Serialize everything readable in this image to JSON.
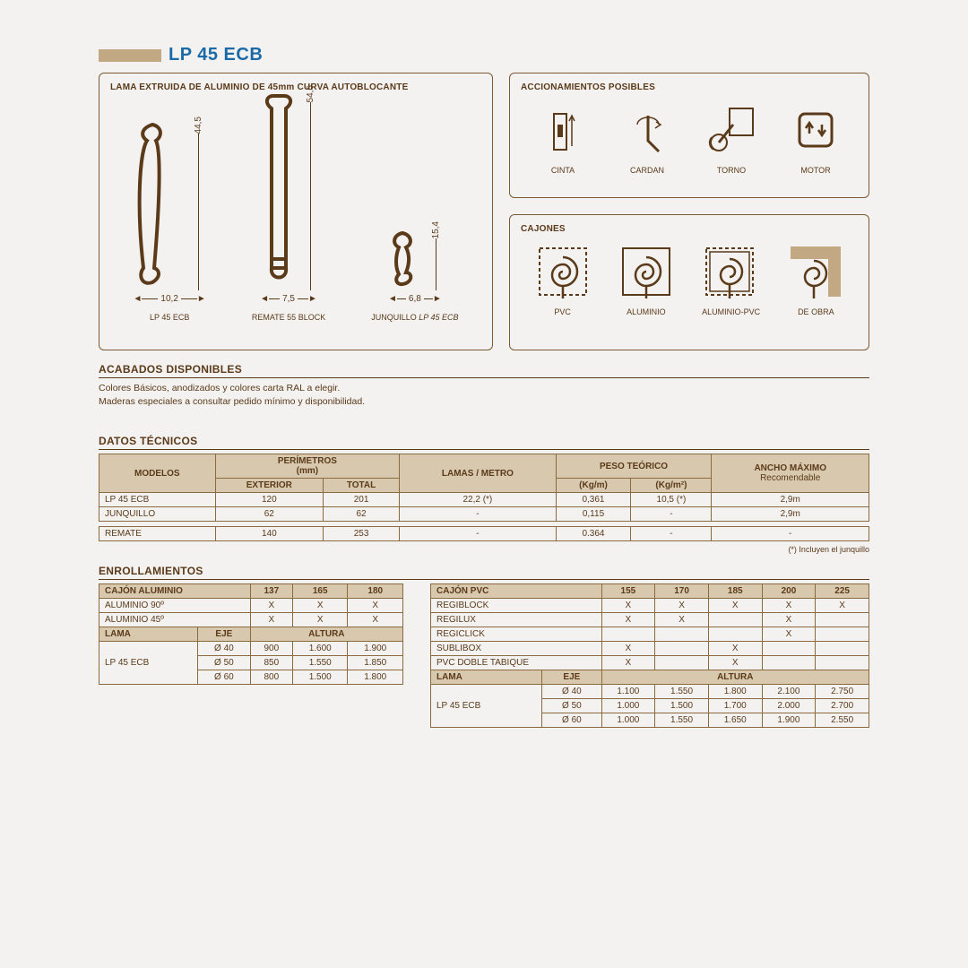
{
  "colors": {
    "accent": "#c2a883",
    "title": "#1a6aa8",
    "line": "#5b3a1a",
    "th_bg": "#d8c9ae",
    "border": "#8a6a3f",
    "bg": "#f3f2f0"
  },
  "title": "LP 45 ECB",
  "panels": {
    "profiles": {
      "title": "LAMA EXTRUIDA DE ALUMINIO DE 45mm CURVA AUTOBLOCANTE",
      "items": [
        {
          "name": "LP 45 ECB",
          "h": "44,5",
          "w": "10,2"
        },
        {
          "name": "REMATE 55 BLOCK",
          "h": "54,6",
          "w": "7,5"
        },
        {
          "name": "JUNQUILLO LP 45 ECB",
          "h": "15,4",
          "w": "6,8",
          "italic_suffix": true
        }
      ]
    },
    "acc": {
      "title": "ACCIONAMIENTOS POSIBLES",
      "items": [
        "CINTA",
        "CARDAN",
        "TORNO",
        "MOTOR"
      ]
    },
    "caj": {
      "title": "CAJONES",
      "items": [
        "PVC",
        "ALUMINIO",
        "ALUMINIO-PVC",
        "DE OBRA"
      ]
    }
  },
  "acabados": {
    "title": "ACABADOS DISPONIBLES",
    "lines": [
      "Colores Básicos, anodizados y colores carta RAL a elegir.",
      "Maderas especiales a consultar pedido mínimo y disponibilidad."
    ]
  },
  "datos": {
    "title": "DATOS TÉCNICOS",
    "head": {
      "modelos": "MODELOS",
      "perimetros": "PERÍMETROS",
      "perimetros_unit": "(mm)",
      "exterior": "EXTERIOR",
      "total": "TOTAL",
      "lamas": "LAMAS / METRO",
      "peso": "PESO TEÓRICO",
      "peso_u1": "(Kg/m)",
      "peso_u2": "(Kg/m²)",
      "ancho": "ANCHO MÁXIMO",
      "ancho_sub": "Recomendable"
    },
    "rows": [
      {
        "m": "LP 45 ECB",
        "ext": "120",
        "tot": "201",
        "lam": "22,2 (*)",
        "p1": "0,361",
        "p2": "10,5 (*)",
        "an": "2,9m"
      },
      {
        "m": "JUNQUILLO",
        "ext": "62",
        "tot": "62",
        "lam": "-",
        "p1": "0,115",
        "p2": "-",
        "an": "2,9m"
      }
    ],
    "row_remate": {
      "m": "REMATE",
      "ext": "140",
      "tot": "253",
      "lam": "-",
      "p1": "0.364",
      "p2": "-",
      "an": "-"
    },
    "footnote": "(*) Incluyen el junquillo"
  },
  "enroll": {
    "title": "ENROLLAMIENTOS",
    "left": {
      "h_cajon": "CAJÓN ALUMINIO",
      "cols": [
        "137",
        "165",
        "180"
      ],
      "rows_top": [
        {
          "n": "ALUMINIO 90º",
          "v": [
            "X",
            "X",
            "X"
          ]
        },
        {
          "n": "ALUMINIO 45º",
          "v": [
            "X",
            "X",
            "X"
          ]
        }
      ],
      "h_lama": "LAMA",
      "h_eje": "EJE",
      "h_altura": "ALTURA",
      "lama": "LP 45 ECB",
      "ejes": [
        {
          "e": "Ø 40",
          "v": [
            "900",
            "1.600",
            "1.900"
          ]
        },
        {
          "e": "Ø 50",
          "v": [
            "850",
            "1.550",
            "1.850"
          ]
        },
        {
          "e": "Ø 60",
          "v": [
            "800",
            "1.500",
            "1.800"
          ]
        }
      ]
    },
    "right": {
      "h_cajon": "CAJÓN PVC",
      "cols": [
        "155",
        "170",
        "185",
        "200",
        "225"
      ],
      "rows_top": [
        {
          "n": "REGIBLOCK",
          "v": [
            "X",
            "X",
            "X",
            "X",
            "X"
          ]
        },
        {
          "n": "REGILUX",
          "v": [
            "X",
            "X",
            "",
            "X",
            ""
          ]
        },
        {
          "n": "REGICLICK",
          "v": [
            "",
            "",
            "",
            "X",
            ""
          ]
        },
        {
          "n": "SUBLIBOX",
          "v": [
            "X",
            "",
            "X",
            "",
            ""
          ]
        },
        {
          "n": "PVC DOBLE TABIQUE",
          "v": [
            "X",
            "",
            "X",
            "",
            ""
          ]
        }
      ],
      "h_lama": "LAMA",
      "h_eje": "EJE",
      "h_altura": "ALTURA",
      "lama": "LP 45 ECB",
      "ejes": [
        {
          "e": "Ø 40",
          "v": [
            "1.100",
            "1.550",
            "1.800",
            "2.100",
            "2.750"
          ]
        },
        {
          "e": "Ø 50",
          "v": [
            "1.000",
            "1.500",
            "1.700",
            "2.000",
            "2.700"
          ]
        },
        {
          "e": "Ø 60",
          "v": [
            "1.000",
            "1.550",
            "1.650",
            "1.900",
            "2.550"
          ]
        }
      ]
    }
  }
}
